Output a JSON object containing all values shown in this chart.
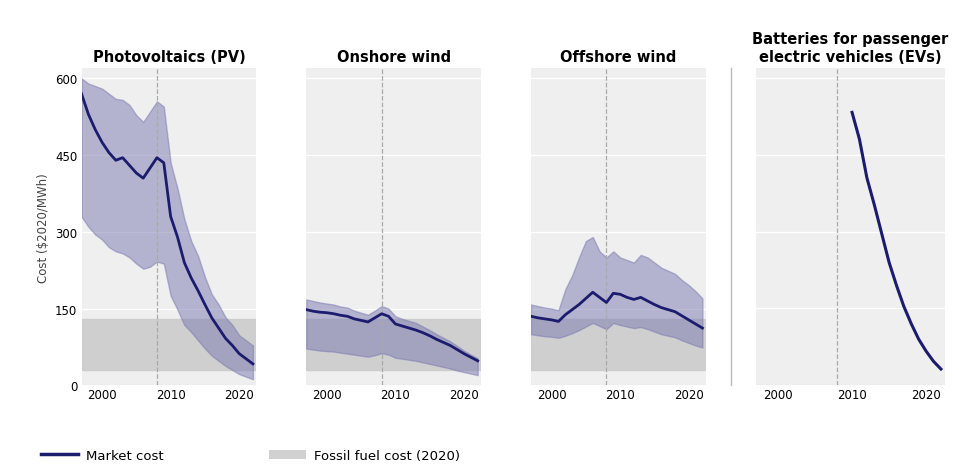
{
  "background_color": "#efefef",
  "fill_color": "#7878b0",
  "fill_alpha": 0.5,
  "line_color": "#1c1c6e",
  "fossil_fill_color": "#cccccc",
  "fossil_alpha": 0.9,
  "dashed_line_color": "#aaaaaa",
  "pv": {
    "title": "Photovoltaics (PV)",
    "years": [
      1997,
      1998,
      1999,
      2000,
      2001,
      2002,
      2003,
      2004,
      2005,
      2006,
      2007,
      2008,
      2009,
      2010,
      2011,
      2012,
      2013,
      2014,
      2015,
      2016,
      2017,
      2018,
      2019,
      2020,
      2021,
      2022
    ],
    "line": [
      570,
      530,
      500,
      475,
      455,
      440,
      445,
      430,
      415,
      405,
      425,
      445,
      435,
      330,
      290,
      240,
      210,
      185,
      158,
      132,
      112,
      92,
      78,
      62,
      52,
      42
    ],
    "upper": [
      600,
      590,
      585,
      580,
      570,
      560,
      558,
      548,
      528,
      515,
      535,
      555,
      545,
      435,
      385,
      325,
      282,
      253,
      212,
      178,
      158,
      133,
      118,
      98,
      88,
      78
    ],
    "lower": [
      330,
      310,
      295,
      285,
      270,
      262,
      258,
      250,
      238,
      228,
      232,
      242,
      238,
      175,
      148,
      118,
      104,
      88,
      72,
      58,
      48,
      38,
      30,
      22,
      17,
      12
    ],
    "fossil_low": 30,
    "fossil_high": 130,
    "dashed_x": 2008,
    "xlim": [
      1997,
      2022.5
    ],
    "ylim": [
      0,
      620
    ],
    "yticks": [
      0,
      150,
      300,
      450,
      600
    ]
  },
  "onshore": {
    "title": "Onshore wind",
    "years": [
      1997,
      1998,
      1999,
      2000,
      2001,
      2002,
      2003,
      2004,
      2005,
      2006,
      2007,
      2008,
      2009,
      2010,
      2011,
      2012,
      2013,
      2014,
      2015,
      2016,
      2017,
      2018,
      2019,
      2020,
      2021,
      2022
    ],
    "line": [
      148,
      145,
      143,
      142,
      140,
      137,
      135,
      130,
      127,
      124,
      132,
      140,
      135,
      120,
      116,
      112,
      108,
      103,
      97,
      90,
      84,
      78,
      70,
      62,
      55,
      48
    ],
    "upper": [
      168,
      165,
      162,
      160,
      158,
      154,
      152,
      146,
      142,
      138,
      146,
      155,
      150,
      135,
      130,
      126,
      122,
      115,
      108,
      100,
      93,
      86,
      77,
      68,
      60,
      53
    ],
    "lower": [
      72,
      70,
      68,
      67,
      66,
      64,
      62,
      60,
      58,
      56,
      59,
      63,
      60,
      54,
      52,
      50,
      48,
      45,
      42,
      39,
      36,
      33,
      29,
      26,
      23,
      20
    ],
    "fossil_low": 30,
    "fossil_high": 130,
    "dashed_x": 2008,
    "xlim": [
      1997,
      2022.5
    ],
    "ylim": [
      0,
      620
    ],
    "yticks": [
      0,
      150,
      300,
      450,
      600
    ]
  },
  "offshore": {
    "title": "Offshore wind",
    "years": [
      1997,
      1998,
      1999,
      2000,
      2001,
      2002,
      2003,
      2004,
      2005,
      2006,
      2007,
      2008,
      2009,
      2010,
      2011,
      2012,
      2013,
      2014,
      2015,
      2016,
      2017,
      2018,
      2019,
      2020,
      2021,
      2022
    ],
    "line": [
      135,
      132,
      130,
      128,
      125,
      138,
      148,
      158,
      170,
      182,
      172,
      162,
      180,
      178,
      172,
      168,
      172,
      165,
      158,
      152,
      148,
      144,
      136,
      128,
      120,
      112
    ],
    "upper": [
      158,
      155,
      152,
      150,
      147,
      188,
      215,
      250,
      282,
      290,
      262,
      250,
      262,
      250,
      245,
      240,
      255,
      250,
      240,
      230,
      224,
      218,
      206,
      196,
      184,
      170
    ],
    "lower": [
      100,
      98,
      96,
      95,
      93,
      97,
      102,
      108,
      115,
      122,
      116,
      110,
      122,
      118,
      115,
      112,
      114,
      110,
      105,
      100,
      97,
      94,
      88,
      83,
      78,
      74
    ],
    "fossil_low": 30,
    "fossil_high": 130,
    "dashed_x": 2008,
    "xlim": [
      1997,
      2022.5
    ],
    "ylim": [
      0,
      620
    ],
    "yticks": [
      0,
      150,
      300,
      450,
      600
    ]
  },
  "ev": {
    "title": "Batteries for passenger\nelectric vehicles (EVs)",
    "years": [
      1997,
      1998,
      1999,
      2000,
      2001,
      2002,
      2003,
      2004,
      2005,
      2006,
      2007,
      2008,
      2009,
      2010,
      2011,
      2012,
      2013,
      2014,
      2015,
      2016,
      2017,
      2018,
      2019,
      2020,
      2021,
      2022
    ],
    "line": [
      null,
      null,
      null,
      null,
      null,
      null,
      null,
      null,
      null,
      null,
      null,
      null,
      null,
      1420,
      1280,
      1080,
      940,
      790,
      640,
      520,
      410,
      320,
      240,
      178,
      125,
      85
    ],
    "dashed_x": 2008,
    "xlim": [
      1997,
      2022.5
    ],
    "ylim": [
      0,
      1650
    ],
    "yticks": [
      0,
      400,
      800,
      1200,
      1600
    ]
  },
  "ylabel": "Cost ($2020/MWh)",
  "legend_market_cost": "Market cost",
  "legend_fossil": "Fossil fuel cost (2020)"
}
